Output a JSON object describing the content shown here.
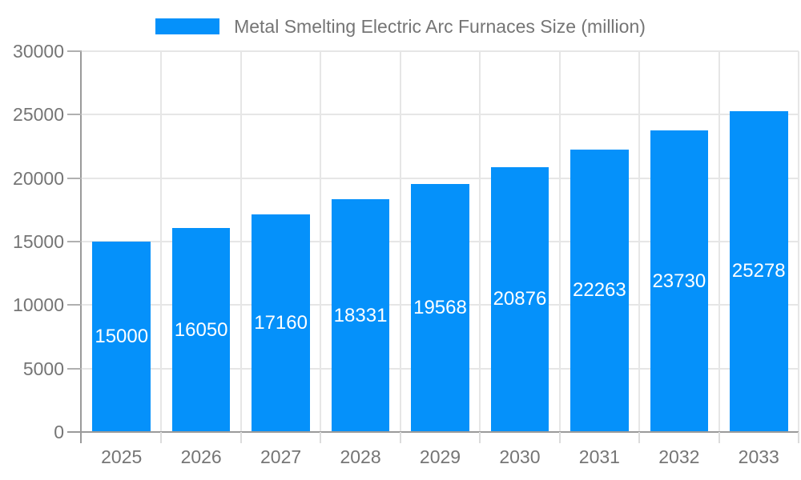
{
  "chart_data": {
    "type": "bar",
    "title": "Metal Smelting Electric Arc Furnaces Size (million)",
    "categories": [
      "2025",
      "2026",
      "2027",
      "2028",
      "2029",
      "2030",
      "2031",
      "2032",
      "2033"
    ],
    "values": [
      15000,
      16050,
      17160,
      18331,
      19568,
      20876,
      22263,
      23730,
      25278
    ],
    "series": [
      {
        "name": "Metal Smelting Electric Arc Furnaces Size (million)",
        "values": [
          15000,
          16050,
          17160,
          18331,
          19568,
          20876,
          22263,
          23730,
          25278
        ]
      }
    ],
    "xlabel": "",
    "ylabel": "",
    "ylim": [
      0,
      30000
    ],
    "yticks": [
      0,
      5000,
      10000,
      15000,
      20000,
      25000,
      30000
    ],
    "grid": "on",
    "legend_position": "top",
    "bar_value_labels": "inside, centered, white"
  },
  "legend": {
    "label": "Metal Smelting Electric Arc Furnaces Size (million)"
  },
  "colors": {
    "bar": "#0591fa",
    "bar_label_text": "#ffffff",
    "axis_text": "#757575",
    "gridline": "#e6e6e6",
    "axis_line": "#9a9a9a",
    "y_tick": "#b0b0b0",
    "x_tick": "#dcdcdc",
    "background": "#ffffff"
  }
}
